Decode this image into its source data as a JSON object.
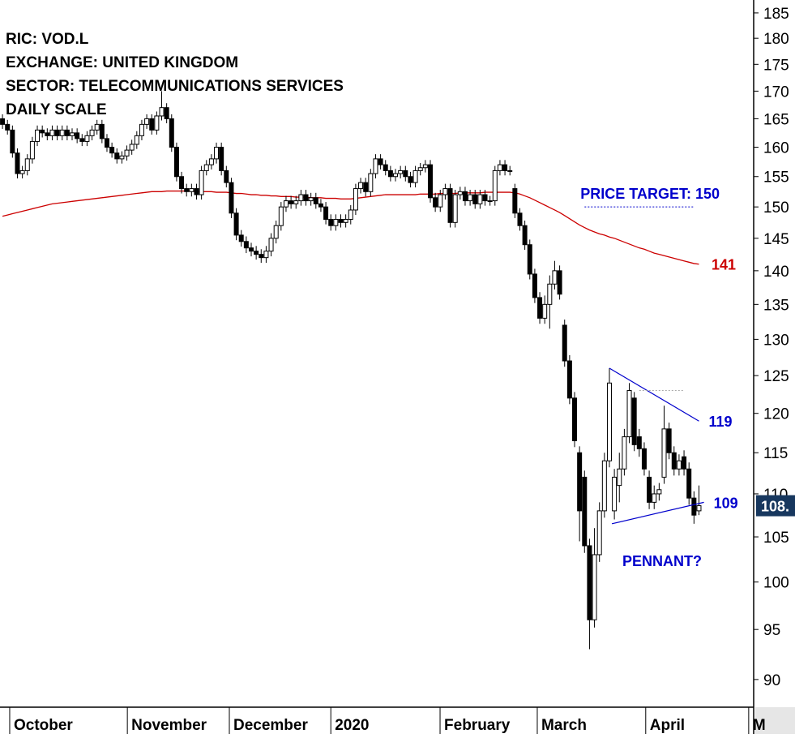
{
  "chart_data": {
    "type": "candlestick",
    "header": [
      "RIC: VOD.L",
      "EXCHANGE: UNITED KINGDOM",
      "SECTOR: TELECOMMUNICATIONS SERVICES",
      "DAILY SCALE"
    ],
    "log": true,
    "ylim": [
      87.5,
      187.6
    ],
    "yticks": [
      90,
      95,
      100,
      105,
      110,
      115,
      120,
      125,
      130,
      135,
      140,
      145,
      150,
      155,
      160,
      165,
      170,
      175,
      180,
      185
    ],
    "xlim": [
      -0.5,
      151
    ],
    "xticks": [
      {
        "value": 1.45,
        "label": "October"
      },
      {
        "value": 25.1,
        "label": "November"
      },
      {
        "value": 45.6,
        "label": "December"
      },
      {
        "value": 66,
        "label": "2020"
      },
      {
        "value": 87.96,
        "label": "February"
      },
      {
        "value": 107.5,
        "label": "March"
      },
      {
        "value": 129.3,
        "label": "April"
      },
      {
        "value": 150,
        "label": "M"
      }
    ],
    "up_color": "#ffffff",
    "down_color": "#000000",
    "ohlc": [
      [
        165,
        165.8,
        163.2,
        164
      ],
      [
        164,
        164.8,
        162.2,
        163
      ],
      [
        163,
        163.8,
        158.2,
        159
      ],
      [
        159,
        159.8,
        154.7,
        155.5
      ],
      [
        155.5,
        156.8,
        154.7,
        156
      ],
      [
        156,
        158.8,
        155.2,
        158
      ],
      [
        158,
        161.8,
        157.2,
        161
      ],
      [
        161,
        163.8,
        160.2,
        163
      ],
      [
        163,
        163.8,
        161.7,
        162.5
      ],
      [
        162.5,
        163.3,
        161.2,
        162
      ],
      [
        162,
        163.8,
        161.2,
        163
      ],
      [
        163,
        163.8,
        161.2,
        162
      ],
      [
        162,
        163.8,
        161.2,
        163
      ],
      [
        163,
        163.8,
        161.2,
        162
      ],
      [
        162,
        163.3,
        161.2,
        162.5
      ],
      [
        162.5,
        163.3,
        160.7,
        161.5
      ],
      [
        161.5,
        162.3,
        160.2,
        161
      ],
      [
        161,
        162.8,
        160.2,
        162
      ],
      [
        162,
        163.8,
        161.2,
        163
      ],
      [
        163,
        164.8,
        162.2,
        164
      ],
      [
        164,
        164.8,
        160.7,
        161.5
      ],
      [
        161.5,
        162.3,
        159.2,
        160
      ],
      [
        160,
        160.8,
        158.2,
        159
      ],
      [
        159,
        159.8,
        157.2,
        158
      ],
      [
        158,
        159.3,
        157.2,
        158.5
      ],
      [
        158.5,
        160.3,
        157.7,
        159.5
      ],
      [
        159.5,
        161.3,
        158.7,
        160.5
      ],
      [
        160.5,
        162.8,
        159.7,
        162
      ],
      [
        162,
        164.8,
        161.2,
        164
      ],
      [
        164,
        165.8,
        163.2,
        165
      ],
      [
        165,
        165.8,
        162.2,
        163
      ],
      [
        163,
        166.3,
        162.2,
        165.5
      ],
      [
        165.5,
        170,
        164.7,
        167
      ],
      [
        167,
        167.8,
        164.2,
        165
      ],
      [
        165,
        165.8,
        159.2,
        160
      ],
      [
        160,
        160.8,
        154.2,
        155
      ],
      [
        155,
        155.8,
        152.2,
        153
      ],
      [
        153,
        153.8,
        151.7,
        152.5
      ],
      [
        152.5,
        153.8,
        151.7,
        153
      ],
      [
        153,
        153.8,
        151.2,
        152
      ],
      [
        152,
        156.8,
        151.2,
        156
      ],
      [
        156,
        157.8,
        155.2,
        157
      ],
      [
        157,
        158.8,
        156.2,
        158
      ],
      [
        158,
        160.8,
        157.2,
        160
      ],
      [
        160,
        160.8,
        155.2,
        156
      ],
      [
        156,
        156.8,
        153.2,
        154
      ],
      [
        154,
        154.8,
        148.2,
        149
      ],
      [
        149,
        149.8,
        144.7,
        145.5
      ],
      [
        145.5,
        146.3,
        143.7,
        144.5
      ],
      [
        144.5,
        145.3,
        142.7,
        143.5
      ],
      [
        143.5,
        144.3,
        142.2,
        143
      ],
      [
        143,
        143.8,
        141.7,
        142.5
      ],
      [
        142.5,
        143.3,
        141.2,
        142
      ],
      [
        142,
        143.8,
        141.2,
        143
      ],
      [
        143,
        145.8,
        142.2,
        145
      ],
      [
        145,
        147.8,
        144.2,
        147
      ],
      [
        147,
        150.8,
        146.2,
        150
      ],
      [
        150,
        151.8,
        149.2,
        151
      ],
      [
        151,
        151.8,
        149.7,
        150.5
      ],
      [
        150.5,
        151.8,
        149.7,
        151
      ],
      [
        151,
        152.8,
        150.2,
        152
      ],
      [
        152,
        152.8,
        150.2,
        151
      ],
      [
        151,
        152.3,
        150.2,
        151.5
      ],
      [
        151.5,
        152.3,
        149.7,
        150.5
      ],
      [
        150.5,
        151.3,
        149.2,
        150
      ],
      [
        150,
        150.8,
        147.2,
        148
      ],
      [
        148,
        148.8,
        146.2,
        147
      ],
      [
        147,
        148.8,
        146.2,
        148
      ],
      [
        148,
        148.8,
        146.7,
        147.5
      ],
      [
        147.5,
        148.8,
        146.7,
        148
      ],
      [
        148,
        150.3,
        147.2,
        149.5
      ],
      [
        149.5,
        153.8,
        148.7,
        153
      ],
      [
        153,
        154.8,
        152.2,
        154
      ],
      [
        154,
        154.8,
        151.7,
        152.5
      ],
      [
        152.5,
        156.3,
        151.7,
        155.5
      ],
      [
        155.5,
        158.8,
        154.7,
        158
      ],
      [
        158,
        158.8,
        156.2,
        157
      ],
      [
        157,
        157.8,
        155.2,
        156
      ],
      [
        156,
        156.8,
        154.2,
        155
      ],
      [
        155,
        156.3,
        154.2,
        155.5
      ],
      [
        155.5,
        156.8,
        154.7,
        156
      ],
      [
        156,
        156.8,
        154.2,
        155
      ],
      [
        155,
        155.8,
        153.2,
        154
      ],
      [
        154,
        156.8,
        153.2,
        156
      ],
      [
        156,
        157.3,
        155.2,
        156.5
      ],
      [
        156.5,
        157.8,
        155.7,
        157
      ],
      [
        157,
        157.8,
        150.7,
        151.5
      ],
      [
        151.5,
        152.3,
        149.2,
        150
      ],
      [
        150,
        152.8,
        149.2,
        152
      ],
      [
        152,
        153.8,
        151.2,
        153
      ],
      [
        153,
        153.8,
        146.7,
        147.5
      ],
      [
        147.5,
        152.8,
        146.7,
        152
      ],
      [
        152,
        153.3,
        151.2,
        152.5
      ],
      [
        152.5,
        153.3,
        150.2,
        151
      ],
      [
        151,
        152.8,
        150.2,
        152
      ],
      [
        152,
        152.8,
        149.7,
        150.5
      ],
      [
        150.5,
        152.8,
        149.7,
        152
      ],
      [
        152,
        152.8,
        150.2,
        151
      ],
      [
        151,
        151.8,
        150.2,
        151
      ],
      [
        151,
        156.8,
        150.2,
        156
      ],
      [
        156,
        157.8,
        155.2,
        157
      ],
      [
        157,
        157.8,
        155.2,
        156
      ],
      [
        156,
        156.8,
        155.2,
        156
      ],
      [
        153,
        153.8,
        148.2,
        149
      ],
      [
        149,
        149.8,
        146.2,
        147
      ],
      [
        147,
        147.8,
        143.2,
        144
      ],
      [
        144,
        144.8,
        138.7,
        139.5
      ],
      [
        139.5,
        140.3,
        135.2,
        136
      ],
      [
        136,
        136.8,
        132.2,
        133
      ],
      [
        133,
        136.3,
        132.2,
        135
      ],
      [
        135,
        139.3,
        131.5,
        138
      ],
      [
        138,
        141.5,
        137.2,
        140
      ],
      [
        140,
        140.8,
        135.7,
        136.5
      ],
      [
        132,
        132.8,
        126.2,
        127
      ],
      [
        127,
        127.8,
        121.2,
        122
      ],
      [
        122,
        122.8,
        115.7,
        116.5
      ],
      [
        115,
        115.8,
        104.5,
        108
      ],
      [
        112,
        112.8,
        103.2,
        104
      ],
      [
        104,
        104.8,
        93,
        96
      ],
      [
        96,
        106,
        95.2,
        103
      ],
      [
        103,
        109,
        102.2,
        108
      ],
      [
        108,
        115,
        107.2,
        114
      ],
      [
        114,
        126,
        113.2,
        124
      ],
      [
        108,
        113,
        107,
        112
      ],
      [
        111,
        115,
        109,
        113
      ],
      [
        113,
        118,
        112.2,
        117
      ],
      [
        117,
        124,
        116.2,
        123
      ],
      [
        122,
        122.8,
        115.2,
        116
      ],
      [
        117,
        118,
        114.5,
        115.5
      ],
      [
        115.5,
        116.3,
        112.2,
        113
      ],
      [
        112,
        112.8,
        108.2,
        109
      ],
      [
        109,
        111,
        108.2,
        110
      ],
      [
        110,
        111.3,
        109.2,
        110.5
      ],
      [
        112,
        121,
        111.2,
        118
      ],
      [
        118,
        118.8,
        114.2,
        115
      ],
      [
        115,
        115.8,
        112.2,
        113
      ],
      [
        113,
        114.8,
        112.2,
        114
      ],
      [
        114.5,
        115.3,
        112.2,
        113
      ],
      [
        113,
        113.8,
        108.7,
        109.5
      ],
      [
        109.5,
        110.3,
        106.5,
        107.5
      ],
      [
        108,
        111,
        107.5,
        108.6
      ]
    ],
    "last_label": "108.",
    "last_label_color": "#17375e",
    "moving_average": {
      "color": "#cc0000",
      "values": [
        148.5,
        148.7,
        148.9,
        149.1,
        149.3,
        149.5,
        149.7,
        149.9,
        150.1,
        150.3,
        150.5,
        150.6,
        150.7,
        150.8,
        150.9,
        151,
        151.1,
        151.2,
        151.3,
        151.4,
        151.5,
        151.6,
        151.7,
        151.8,
        151.9,
        152,
        152.1,
        152.2,
        152.3,
        152.4,
        152.5,
        152.5,
        152.5,
        152.6,
        152.6,
        152.6,
        152.6,
        152.6,
        152.6,
        152.5,
        152.5,
        152.5,
        152.5,
        152.4,
        152.4,
        152.4,
        152.3,
        152.2,
        152.2,
        152.1,
        152,
        152,
        151.9,
        151.9,
        151.8,
        151.8,
        151.7,
        151.7,
        151.7,
        151.6,
        151.6,
        151.6,
        151.5,
        151.5,
        151.5,
        151.4,
        151.4,
        151.4,
        151.3,
        151.3,
        151.3,
        151.4,
        151.5,
        151.6,
        151.7,
        151.8,
        151.9,
        152,
        152,
        152,
        152,
        152,
        152,
        152,
        152.1,
        152.1,
        152.1,
        152.1,
        152.2,
        152.2,
        152.2,
        152.2,
        152.3,
        152.3,
        152.3,
        152.3,
        152.3,
        152.4,
        152.4,
        152.4,
        152.4,
        152.4,
        152.4,
        152.3,
        152.1,
        151.8,
        151.5,
        151.1,
        150.7,
        150.3,
        149.9,
        149.5,
        149.1,
        148.6,
        148.1,
        147.6,
        147.1,
        146.7,
        146.3,
        146,
        145.7,
        145.5,
        145.2,
        145,
        144.7,
        144.4,
        144.1,
        143.8,
        143.5,
        143.3,
        143,
        142.7,
        142.5,
        142.3,
        142.1,
        141.9,
        141.7,
        141.5,
        141.3,
        141.1,
        141
      ]
    },
    "trendlines": [
      {
        "x": [
          122,
          140
        ],
        "y": [
          126,
          119
        ],
        "color": "#0000cc"
      },
      {
        "x": [
          122.5,
          141
        ],
        "y": [
          106.5,
          109
        ],
        "color": "#0000cc"
      }
    ],
    "target": {
      "label": "PRICE TARGET: 150",
      "value": 150,
      "x": [
        117,
        139
      ],
      "color": "#0000cc"
    },
    "resistance": {
      "value": 123,
      "x": [
        128,
        137
      ],
      "color": "#aaaaaa"
    },
    "annotation": {
      "text": "PENNANT?",
      "color": "#0000cc"
    }
  }
}
